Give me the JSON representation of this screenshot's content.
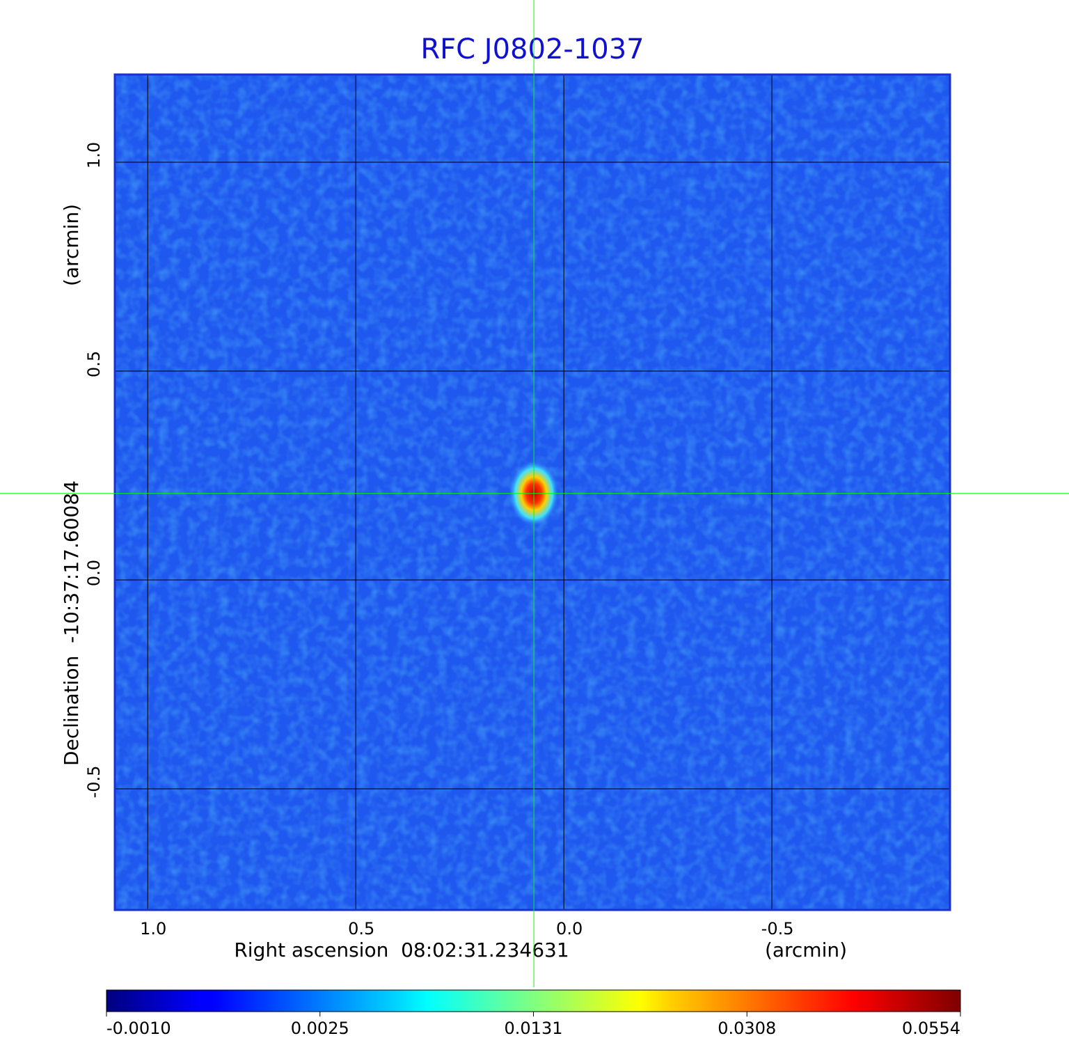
{
  "chart_data": {
    "type": "image",
    "title": "RFC J0802-1037",
    "xlabel": "Right ascension  08:02:31.234631",
    "xunit": "(arcmin)",
    "ylabel": "Declination  -10:37:17.60084",
    "yunit": "(arcmin)",
    "xlim": [
      1.079,
      -0.928
    ],
    "ylim": [
      -0.79,
      1.21
    ],
    "xticks": [
      {
        "value": 1,
        "label": "1.0"
      },
      {
        "value": 0.5,
        "label": "0.5"
      },
      {
        "value": 0,
        "label": "0.0"
      },
      {
        "value": -0.5,
        "label": "-0.5"
      }
    ],
    "yticks": [
      {
        "value": 1,
        "label": "1.0"
      },
      {
        "value": 0.5,
        "label": "0.5"
      },
      {
        "value": 0,
        "label": "0.0"
      },
      {
        "value": -0.5,
        "label": "-0.5"
      }
    ],
    "grid": true,
    "crosshair": {
      "x": 0.072,
      "y": 0.207,
      "color": "#00ff00"
    },
    "colormap": "jet",
    "colorbar_ticks": [
      {
        "value": -0.001,
        "label": "-0.0010"
      },
      0.0025,
      0.0131,
      0.0308,
      0.0554
    ]
  }
}
